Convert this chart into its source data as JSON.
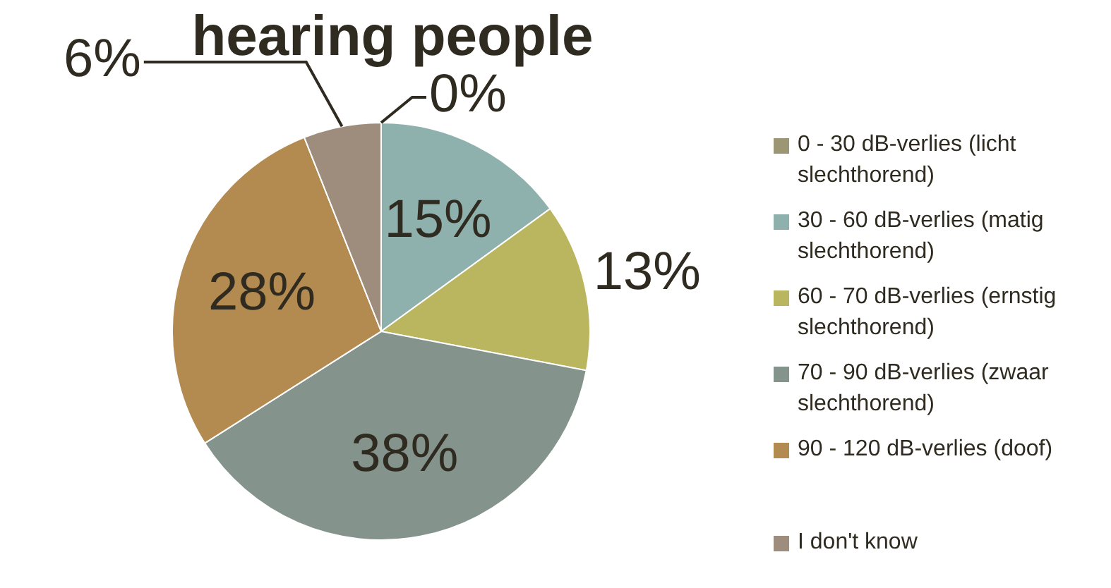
{
  "chart_data": {
    "type": "pie",
    "title": "hearing people",
    "categories": [
      "0 - 30 dB-verlies (licht slechthorend)",
      "30 - 60 dB-verlies (matig slechthorend)",
      "60 - 70 dB-verlies (ernstig slechthorend)",
      "70 - 90 dB-verlies (zwaar slechthorend)",
      "90 - 120 dB-verlies (doof)",
      "I don't know"
    ],
    "values": [
      0,
      15,
      13,
      38,
      28,
      6
    ],
    "value_labels": [
      "0%",
      "15%",
      "13%",
      "38%",
      "28%",
      "6%"
    ],
    "colors": [
      "#9c9674",
      "#8fb1ae",
      "#bab660",
      "#84938c",
      "#b38b50",
      "#9e8d7d"
    ],
    "legend": "right"
  }
}
